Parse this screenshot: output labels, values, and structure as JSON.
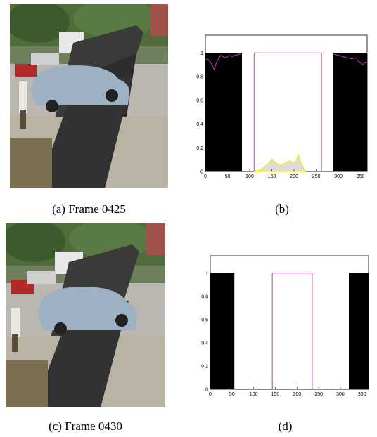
{
  "figure": {
    "panels": [
      {
        "caption": "(a) Frame 0425"
      },
      {
        "caption": "(b)"
      },
      {
        "caption": "(c) Frame 0430"
      },
      {
        "caption": "(d)"
      }
    ]
  },
  "chart_data": [
    {
      "type": "area",
      "panel": "b",
      "title": "",
      "xlabel": "",
      "ylabel": "",
      "xlim": [
        0,
        365
      ],
      "ylim": [
        0,
        1.15
      ],
      "xticks": [
        0,
        50,
        100,
        150,
        200,
        250,
        300,
        350
      ],
      "yticks": [
        0,
        0.2,
        0.4,
        0.6,
        0.8,
        1
      ],
      "ytick_labels": [
        "0",
        "0.2",
        "0.4",
        "0.6",
        "0.8",
        "1"
      ],
      "grid": false,
      "series": [
        {
          "values_x": [
            0,
            0,
            82,
            82,
            289,
            289,
            365,
            365
          ],
          "values_y": [
            0,
            1,
            1,
            0,
            0,
            1,
            1,
            0
          ],
          "color": "#000000"
        },
        {
          "values_x": [
            110,
            110,
            262,
            262
          ],
          "values_y": [
            0,
            1,
            1,
            0
          ],
          "color": "#cc33cc"
        },
        {
          "values_x": [
            0,
            5,
            10,
            15,
            20,
            25,
            30,
            35,
            40,
            45,
            50,
            55,
            60,
            65,
            70,
            75,
            80
          ],
          "values_y": [
            0.94,
            0.95,
            0.93,
            0.9,
            0.86,
            0.92,
            0.95,
            0.98,
            0.97,
            0.96,
            0.97,
            0.98,
            0.97,
            0.98,
            0.98,
            0.99,
            0.99
          ],
          "color": "#cc33cc"
        },
        {
          "values_x": [
            290,
            300,
            310,
            320,
            330,
            340,
            345,
            350,
            355,
            360,
            365
          ],
          "values_y": [
            0.99,
            0.98,
            0.97,
            0.96,
            0.95,
            0.96,
            0.93,
            0.92,
            0.9,
            0.92,
            0.92
          ],
          "color": "#cc33cc"
        },
        {
          "values_x": [
            110,
            120,
            130,
            140,
            150,
            160,
            170,
            180,
            190,
            200,
            205,
            210,
            215,
            220,
            225
          ],
          "values_y": [
            0,
            0.01,
            0.03,
            0.06,
            0.1,
            0.07,
            0.05,
            0.07,
            0.09,
            0.07,
            0.09,
            0.14,
            0.08,
            0.04,
            0
          ],
          "color": "#f0f000"
        }
      ]
    },
    {
      "type": "area",
      "panel": "d",
      "title": "",
      "xlabel": "",
      "ylabel": "",
      "xlim": [
        0,
        365
      ],
      "ylim": [
        0,
        1.15
      ],
      "xticks": [
        0,
        50,
        100,
        150,
        200,
        250,
        300,
        350
      ],
      "yticks": [
        0,
        0.2,
        0.4,
        0.6,
        0.8,
        1
      ],
      "ytick_labels": [
        "0",
        "0.2",
        "0.4",
        "0.6",
        "0.8",
        "1"
      ],
      "grid": false,
      "series": [
        {
          "values_x": [
            0,
            0,
            55,
            55,
            320,
            320,
            365,
            365
          ],
          "values_y": [
            0,
            1,
            1,
            0,
            0,
            1,
            1,
            0
          ],
          "color": "#000000"
        },
        {
          "values_x": [
            143,
            143,
            235,
            235
          ],
          "values_y": [
            0,
            1,
            1,
            0
          ],
          "color": "#cc33cc"
        }
      ]
    }
  ]
}
